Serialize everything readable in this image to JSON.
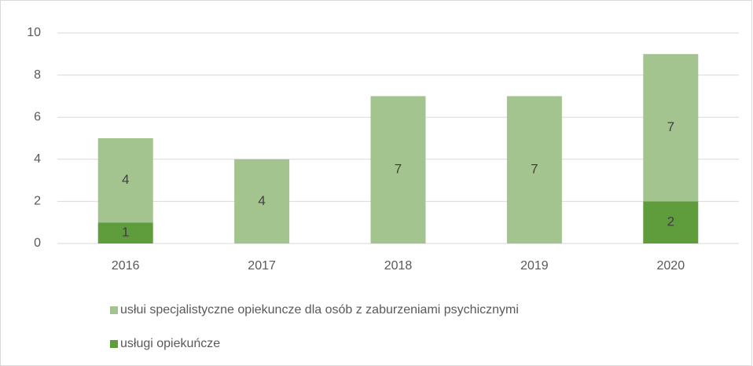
{
  "chart_data": {
    "type": "stacked_bar",
    "categories": [
      "2016",
      "2017",
      "2018",
      "2019",
      "2020"
    ],
    "series": [
      {
        "name": "usługi opiekuńcze",
        "color": "#5f9c3b",
        "values": [
          1,
          0,
          0,
          0,
          2
        ]
      },
      {
        "name": "usłui specjalistyczne opiekuncze dla osób z zaburzeniami psychicznymi",
        "color": "#a3c48f",
        "values": [
          4,
          4,
          7,
          7,
          7
        ]
      }
    ],
    "ylim": [
      0,
      10
    ],
    "yticks": [
      0,
      2,
      4,
      6,
      8,
      10
    ],
    "grid": true,
    "legend": "bottom"
  }
}
